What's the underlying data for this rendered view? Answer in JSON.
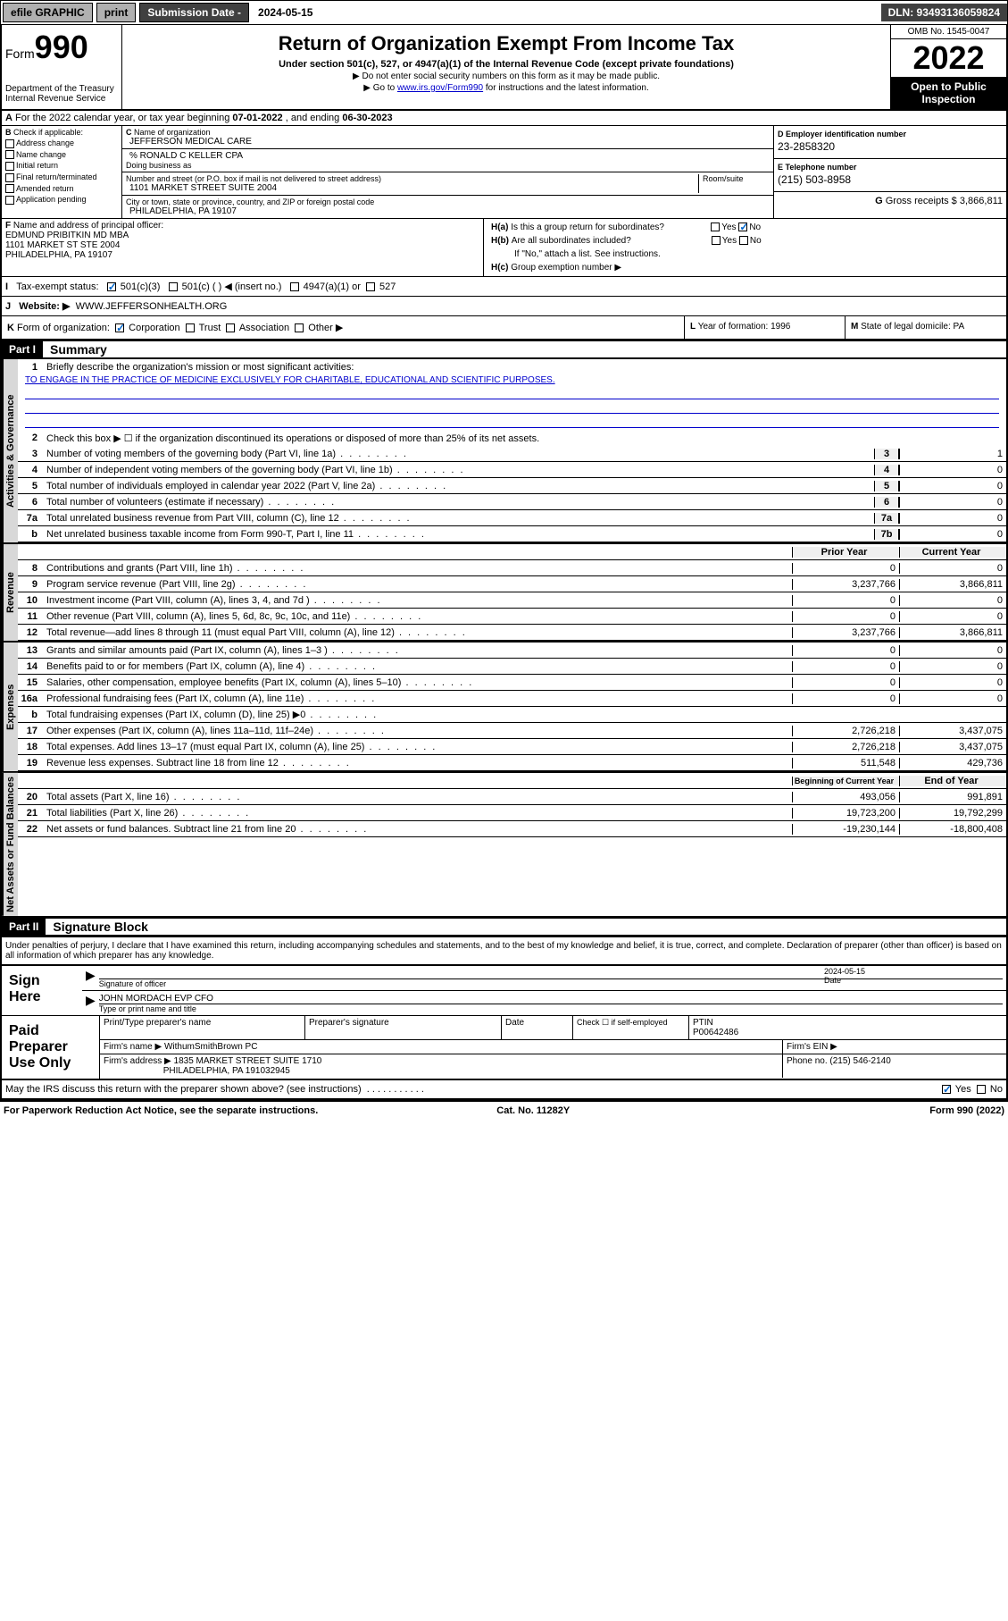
{
  "topbar": {
    "efile": "efile GRAPHIC",
    "print": "print",
    "sub_label": "Submission Date - ",
    "sub_date": "2024-05-15",
    "dln": "DLN: 93493136059824"
  },
  "header": {
    "form_prefix": "Form",
    "form_num": "990",
    "dept": "Department of the Treasury\nInternal Revenue Service",
    "title": "Return of Organization Exempt From Income Tax",
    "sub1": "Under section 501(c), 527, or 4947(a)(1) of the Internal Revenue Code (except private foundations)",
    "sub2": "▶ Do not enter social security numbers on this form as it may be made public.",
    "sub3_pre": "▶ Go to ",
    "sub3_link": "www.irs.gov/Form990",
    "sub3_post": " for instructions and the latest information.",
    "omb": "OMB No. 1545-0047",
    "year": "2022",
    "inspect": "Open to Public Inspection"
  },
  "period": {
    "line_a": "For the 2022 calendar year, or tax year beginning ",
    "begin": "07-01-2022",
    "mid": " , and ending ",
    "end": "06-30-2023"
  },
  "boxB": {
    "label": "Check if applicable:",
    "items": [
      "Address change",
      "Name change",
      "Initial return",
      "Final return/terminated",
      "Amended return",
      "Application pending"
    ]
  },
  "boxC": {
    "label": "Name of organization",
    "org": "JEFFERSON MEDICAL CARE",
    "care_of": "% RONALD C KELLER CPA",
    "dba_label": "Doing business as",
    "addr_label": "Number and street (or P.O. box if mail is not delivered to street address)",
    "addr": "1101 MARKET STREET SUITE 2004",
    "room_label": "Room/suite",
    "city_label": "City or town, state or province, country, and ZIP or foreign postal code",
    "city": "PHILADELPHIA, PA  19107"
  },
  "boxD": {
    "label": "Employer identification number",
    "val": "23-2858320"
  },
  "boxE": {
    "label": "Telephone number",
    "val": "(215) 503-8958"
  },
  "boxG": {
    "label": "Gross receipts $",
    "val": "3,866,811"
  },
  "boxF": {
    "label": "Name and address of principal officer:",
    "name": "EDMUND PRIBITKIN MD MBA",
    "addr1": "1101 MARKET ST STE 2004",
    "addr2": "PHILADELPHIA, PA  19107"
  },
  "boxH": {
    "a": "Is this a group return for subordinates?",
    "b": "Are all subordinates included?",
    "b_note": "If \"No,\" attach a list. See instructions.",
    "c": "Group exemption number ▶",
    "a_no": true
  },
  "boxI": {
    "label": "Tax-exempt status:",
    "opt1": "501(c)(3)",
    "opt2": "501(c) (  ) ◀ (insert no.)",
    "opt3": "4947(a)(1) or",
    "opt4": "527"
  },
  "boxJ": {
    "label": "Website: ▶",
    "val": "WWW.JEFFERSONHEALTH.ORG"
  },
  "boxK": {
    "label": "Form of organization:",
    "opts": [
      "Corporation",
      "Trust",
      "Association",
      "Other ▶"
    ]
  },
  "boxL": {
    "label": "Year of formation:",
    "val": "1996"
  },
  "boxM": {
    "label": "State of legal domicile:",
    "val": "PA"
  },
  "part1": {
    "hdr": "Part I",
    "title": "Summary",
    "q1": "Briefly describe the organization's mission or most significant activities:",
    "mission": "TO ENGAGE IN THE PRACTICE OF MEDICINE EXCLUSIVELY FOR CHARITABLE, EDUCATIONAL AND SCIENTIFIC PURPOSES.",
    "q2": "Check this box ▶ ☐  if the organization discontinued its operations or disposed of more than 25% of its net assets.",
    "lines_gov": [
      {
        "n": "3",
        "t": "Number of voting members of the governing body (Part VI, line 1a)",
        "box": "3",
        "v": "1"
      },
      {
        "n": "4",
        "t": "Number of independent voting members of the governing body (Part VI, line 1b)",
        "box": "4",
        "v": "0"
      },
      {
        "n": "5",
        "t": "Total number of individuals employed in calendar year 2022 (Part V, line 2a)",
        "box": "5",
        "v": "0"
      },
      {
        "n": "6",
        "t": "Total number of volunteers (estimate if necessary)",
        "box": "6",
        "v": "0"
      },
      {
        "n": "7a",
        "t": "Total unrelated business revenue from Part VIII, column (C), line 12",
        "box": "7a",
        "v": "0"
      },
      {
        "n": "b",
        "t": "Net unrelated business taxable income from Form 990-T, Part I, line 11",
        "box": "7b",
        "v": "0"
      }
    ],
    "col_prior": "Prior Year",
    "col_curr": "Current Year",
    "lines_rev": [
      {
        "n": "8",
        "t": "Contributions and grants (Part VIII, line 1h)",
        "p": "0",
        "c": "0"
      },
      {
        "n": "9",
        "t": "Program service revenue (Part VIII, line 2g)",
        "p": "3,237,766",
        "c": "3,866,811"
      },
      {
        "n": "10",
        "t": "Investment income (Part VIII, column (A), lines 3, 4, and 7d )",
        "p": "0",
        "c": "0"
      },
      {
        "n": "11",
        "t": "Other revenue (Part VIII, column (A), lines 5, 6d, 8c, 9c, 10c, and 11e)",
        "p": "0",
        "c": "0"
      },
      {
        "n": "12",
        "t": "Total revenue—add lines 8 through 11 (must equal Part VIII, column (A), line 12)",
        "p": "3,237,766",
        "c": "3,866,811"
      }
    ],
    "lines_exp": [
      {
        "n": "13",
        "t": "Grants and similar amounts paid (Part IX, column (A), lines 1–3 )",
        "p": "0",
        "c": "0"
      },
      {
        "n": "14",
        "t": "Benefits paid to or for members (Part IX, column (A), line 4)",
        "p": "0",
        "c": "0"
      },
      {
        "n": "15",
        "t": "Salaries, other compensation, employee benefits (Part IX, column (A), lines 5–10)",
        "p": "0",
        "c": "0"
      },
      {
        "n": "16a",
        "t": "Professional fundraising fees (Part IX, column (A), line 11e)",
        "p": "0",
        "c": "0"
      },
      {
        "n": "b",
        "t": "Total fundraising expenses (Part IX, column (D), line 25) ▶0",
        "p": "",
        "c": ""
      },
      {
        "n": "17",
        "t": "Other expenses (Part IX, column (A), lines 11a–11d, 11f–24e)",
        "p": "2,726,218",
        "c": "3,437,075"
      },
      {
        "n": "18",
        "t": "Total expenses. Add lines 13–17 (must equal Part IX, column (A), line 25)",
        "p": "2,726,218",
        "c": "3,437,075"
      },
      {
        "n": "19",
        "t": "Revenue less expenses. Subtract line 18 from line 12",
        "p": "511,548",
        "c": "429,736"
      }
    ],
    "col_begin": "Beginning of Current Year",
    "col_end": "End of Year",
    "lines_net": [
      {
        "n": "20",
        "t": "Total assets (Part X, line 16)",
        "p": "493,056",
        "c": "991,891"
      },
      {
        "n": "21",
        "t": "Total liabilities (Part X, line 26)",
        "p": "19,723,200",
        "c": "19,792,299"
      },
      {
        "n": "22",
        "t": "Net assets or fund balances. Subtract line 21 from line 20",
        "p": "-19,230,144",
        "c": "-18,800,408"
      }
    ],
    "vlabels": {
      "gov": "Activities & Governance",
      "rev": "Revenue",
      "exp": "Expenses",
      "net": "Net Assets or Fund Balances"
    }
  },
  "part2": {
    "hdr": "Part II",
    "title": "Signature Block",
    "decl": "Under penalties of perjury, I declare that I have examined this return, including accompanying schedules and statements, and to the best of my knowledge and belief, it is true, correct, and complete. Declaration of preparer (other than officer) is based on all information of which preparer has any knowledge."
  },
  "sign": {
    "left": "Sign Here",
    "sig_label": "Signature of officer",
    "date_label": "Date",
    "date_val": "2024-05-15",
    "name": "JOHN MORDACH  EVP CFO",
    "name_label": "Type or print name and title"
  },
  "prep": {
    "left": "Paid Preparer Use Only",
    "h1": "Print/Type preparer's name",
    "h2": "Preparer's signature",
    "h3": "Date",
    "h4_pre": "Check ☐ if self-employed",
    "h5": "PTIN",
    "ptin": "P00642486",
    "firm_label": "Firm's name    ▶",
    "firm": "WithumSmithBrown PC",
    "ein_label": "Firm's EIN ▶",
    "addr_label": "Firm's address ▶",
    "addr1": "1835 MARKET STREET SUITE 1710",
    "addr2": "PHILADELPHIA, PA  191032945",
    "phone_label": "Phone no.",
    "phone": "(215) 546-2140"
  },
  "discuss": {
    "q": "May the IRS discuss this return with the preparer shown above? (see instructions)",
    "yes": true
  },
  "footer": {
    "left": "For Paperwork Reduction Act Notice, see the separate instructions.",
    "mid": "Cat. No. 11282Y",
    "right_pre": "Form ",
    "right_form": "990",
    "right_post": " (2022)"
  }
}
